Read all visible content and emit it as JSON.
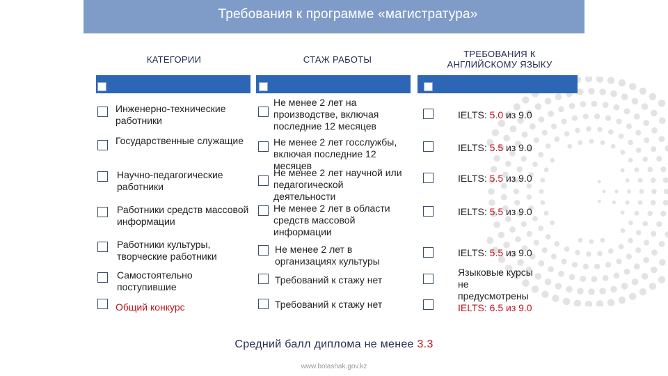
{
  "title": "Требования к программе «магистратура»",
  "headers": {
    "categories": "КАТЕГОРИИ",
    "experience": "СТАЖ РАБОТЫ",
    "english": "ТРЕБОВАНИЯ К АНГЛИЙСКОМУ ЯЗЫКУ"
  },
  "rows": [
    {
      "category": "Инженерно-технические работники",
      "experience": "Не менее 2 лет на производстве, включая последние 12 месяцев",
      "english_prefix": "IELTS: ",
      "english_score": "5.0",
      "english_suffix": " из 9.0"
    },
    {
      "category": "Государственные служащие",
      "experience": "Не менее 2 лет госслужбы, включая последние 12 месяцев",
      "english_prefix": "IELTS: ",
      "english_score": "5.5",
      "english_suffix": " из 9.0"
    },
    {
      "category": "Научно-педагогические работники",
      "experience": "Не менее 2 лет научной или педагогической деятельности",
      "english_prefix": "IELTS: ",
      "english_score": "5.5",
      "english_suffix": " из 9.0"
    },
    {
      "category": "Работники средств массовой информации",
      "experience": "Не менее 2 лет в области средств массовой информации",
      "english_prefix": "IELTS: ",
      "english_score": "5.5",
      "english_suffix": " из 9.0"
    },
    {
      "category": "Работники культуры, творческие работники",
      "experience": "Не менее 2 лет в организациях культуры",
      "english_prefix": "IELTS: ",
      "english_score": "5.5",
      "english_suffix": " из 9.0"
    },
    {
      "category": "Самостоятельно поступившие",
      "experience": "Требований к стажу нет",
      "english_prefix": "",
      "english_score": "",
      "english_suffix": ""
    },
    {
      "category": "Общий конкурс",
      "experience": "Требований к стажу нет",
      "english_prefix": "",
      "english_score": "",
      "english_suffix": ""
    }
  ],
  "english_note": {
    "line1": "Языковые курсы",
    "line2": "не",
    "line3": "предусмотрены",
    "line4": "IELTS: 6.5 из 9.0"
  },
  "footer": {
    "text": "Средний балл диплома не менее ",
    "score": "3.3"
  },
  "url": "www.bolashak.gov.kz",
  "colors": {
    "title_bar": "#7f9cc9",
    "column_bar": "#2e66b6",
    "accent_red": "#c0121b",
    "score_red": "#c0121b"
  }
}
